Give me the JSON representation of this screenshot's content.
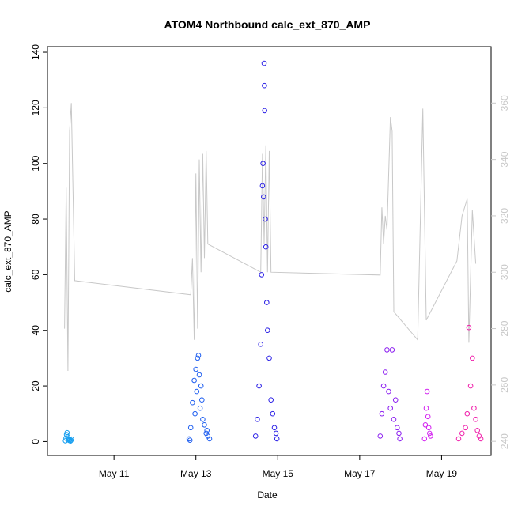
{
  "chart_data": {
    "type": "scatter",
    "title": "ATOM4 Northbound calc_ext_870_AMP",
    "xlabel": "Date",
    "ylabel": "calc_ext_870_AMP",
    "xlim": [
      "2023-05-09T09:00",
      "2023-05-20T05:00"
    ],
    "ylim": [
      -5,
      142
    ],
    "y2lim": [
      235,
      380
    ],
    "x_ticks": [
      {
        "date": "2023-05-11",
        "label": "May 11"
      },
      {
        "date": "2023-05-13",
        "label": "May 13"
      },
      {
        "date": "2023-05-15",
        "label": "May 15"
      },
      {
        "date": "2023-05-17",
        "label": "May 17"
      },
      {
        "date": "2023-05-19",
        "label": "May 19"
      }
    ],
    "y_ticks": [
      0,
      20,
      40,
      60,
      80,
      100,
      120,
      140
    ],
    "y2_ticks": [
      240,
      260,
      280,
      300,
      320,
      340,
      360
    ],
    "grid": false,
    "legend": "none",
    "colors": {
      "right_axis": "#c8c8c8",
      "secondary_line": "#c8c8c8",
      "axes": "#000000"
    },
    "series": [
      {
        "kind": "points",
        "color": "#1aa0f0",
        "points": [
          [
            "2023-05-09T19:30",
            0.3
          ],
          [
            "2023-05-09T19:50",
            1.2
          ],
          [
            "2023-05-09T20:10",
            2.5
          ],
          [
            "2023-05-09T20:30",
            3.2
          ],
          [
            "2023-05-09T20:50",
            1.8
          ],
          [
            "2023-05-09T21:10",
            0.6
          ],
          [
            "2023-05-09T21:30",
            1.0
          ],
          [
            "2023-05-09T21:50",
            0.4
          ],
          [
            "2023-05-09T22:10",
            0.8
          ],
          [
            "2023-05-09T22:30",
            0.2
          ],
          [
            "2023-05-09T22:50",
            0.5
          ],
          [
            "2023-05-09T23:10",
            0.9
          ]
        ]
      },
      {
        "kind": "points",
        "color": "#1e5ef0",
        "points": [
          [
            "2023-05-12T20:00",
            1.0
          ],
          [
            "2023-05-12T21:00",
            5.0
          ],
          [
            "2023-05-12T22:00",
            14.0
          ],
          [
            "2023-05-12T23:00",
            22.0
          ],
          [
            "2023-05-13T00:00",
            26.0
          ],
          [
            "2023-05-13T00:30",
            18.0
          ],
          [
            "2023-05-13T01:00",
            30.0
          ],
          [
            "2023-05-13T01:30",
            31.0
          ],
          [
            "2023-05-13T02:00",
            24.0
          ],
          [
            "2023-05-13T02:30",
            12.0
          ],
          [
            "2023-05-13T03:00",
            20.0
          ],
          [
            "2023-05-13T04:00",
            8.0
          ],
          [
            "2023-05-13T05:00",
            6.0
          ],
          [
            "2023-05-13T06:00",
            3.0
          ],
          [
            "2023-05-13T07:00",
            2.0
          ],
          [
            "2023-05-13T08:00",
            1.0
          ],
          [
            "2023-05-12T20:30",
            0.5
          ],
          [
            "2023-05-12T23:30",
            10.0
          ],
          [
            "2023-05-13T03:30",
            15.0
          ],
          [
            "2023-05-13T06:30",
            4.0
          ]
        ]
      },
      {
        "kind": "points",
        "color": "#2a1fe6",
        "points": [
          [
            "2023-05-14T11:00",
            2.0
          ],
          [
            "2023-05-14T12:00",
            8.0
          ],
          [
            "2023-05-14T13:00",
            20.0
          ],
          [
            "2023-05-14T14:00",
            35.0
          ],
          [
            "2023-05-14T14:30",
            60.0
          ],
          [
            "2023-05-14T15:00",
            92.0
          ],
          [
            "2023-05-14T15:20",
            100.0
          ],
          [
            "2023-05-14T15:40",
            88.0
          ],
          [
            "2023-05-14T16:00",
            136.0
          ],
          [
            "2023-05-14T16:10",
            128.0
          ],
          [
            "2023-05-14T16:20",
            119.0
          ],
          [
            "2023-05-14T16:40",
            80.0
          ],
          [
            "2023-05-14T17:00",
            70.0
          ],
          [
            "2023-05-14T17:30",
            50.0
          ],
          [
            "2023-05-14T18:00",
            40.0
          ],
          [
            "2023-05-14T19:00",
            30.0
          ],
          [
            "2023-05-14T20:00",
            15.0
          ],
          [
            "2023-05-14T21:00",
            10.0
          ],
          [
            "2023-05-14T22:00",
            5.0
          ],
          [
            "2023-05-14T23:00",
            3.0
          ],
          [
            "2023-05-14T23:30",
            1.0
          ]
        ]
      },
      {
        "kind": "points",
        "color": "#8b1ef0",
        "points": [
          [
            "2023-05-17T12:00",
            2.0
          ],
          [
            "2023-05-17T13:00",
            10.0
          ],
          [
            "2023-05-17T14:00",
            20.0
          ],
          [
            "2023-05-17T15:00",
            25.0
          ],
          [
            "2023-05-17T16:00",
            33.0
          ],
          [
            "2023-05-17T17:00",
            18.0
          ],
          [
            "2023-05-17T18:00",
            12.0
          ],
          [
            "2023-05-17T19:00",
            33.0
          ],
          [
            "2023-05-17T20:00",
            8.0
          ],
          [
            "2023-05-17T21:00",
            15.0
          ],
          [
            "2023-05-17T22:00",
            5.0
          ],
          [
            "2023-05-17T23:00",
            3.0
          ],
          [
            "2023-05-17T23:30",
            1.0
          ]
        ]
      },
      {
        "kind": "points",
        "color": "#d21ef0",
        "points": [
          [
            "2023-05-18T14:00",
            1.0
          ],
          [
            "2023-05-18T14:30",
            6.0
          ],
          [
            "2023-05-18T15:00",
            12.0
          ],
          [
            "2023-05-18T15:30",
            18.0
          ],
          [
            "2023-05-18T16:00",
            9.0
          ],
          [
            "2023-05-18T16:30",
            5.0
          ],
          [
            "2023-05-18T17:00",
            3.0
          ],
          [
            "2023-05-18T17:30",
            2.0
          ]
        ]
      },
      {
        "kind": "points",
        "color": "#f01eaa",
        "points": [
          [
            "2023-05-19T10:00",
            1.0
          ],
          [
            "2023-05-19T12:00",
            3.0
          ],
          [
            "2023-05-19T14:00",
            5.0
          ],
          [
            "2023-05-19T15:00",
            10.0
          ],
          [
            "2023-05-19T16:00",
            41.0
          ],
          [
            "2023-05-19T17:00",
            20.0
          ],
          [
            "2023-05-19T18:00",
            30.0
          ],
          [
            "2023-05-19T19:00",
            12.0
          ],
          [
            "2023-05-19T20:00",
            8.0
          ],
          [
            "2023-05-19T21:00",
            4.0
          ],
          [
            "2023-05-19T22:00",
            2.0
          ],
          [
            "2023-05-19T23:00",
            1.0
          ]
        ]
      },
      {
        "kind": "line",
        "axis": "right",
        "color": "#c8c8c8",
        "points": [
          [
            "2023-05-09T19:00",
            280.0
          ],
          [
            "2023-05-09T20:00",
            330.0
          ],
          [
            "2023-05-09T21:00",
            265.0
          ],
          [
            "2023-05-09T22:00",
            350.0
          ],
          [
            "2023-05-09T23:00",
            360.0
          ],
          [
            "2023-05-10T01:00",
            297.0
          ],
          [
            "2023-05-12T21:00",
            292.0
          ],
          [
            "2023-05-12T22:00",
            305.0
          ],
          [
            "2023-05-12T23:00",
            276.0
          ],
          [
            "2023-05-13T00:00",
            335.0
          ],
          [
            "2023-05-13T01:00",
            280.0
          ],
          [
            "2023-05-13T02:00",
            340.0
          ],
          [
            "2023-05-13T03:00",
            300.0
          ],
          [
            "2023-05-13T04:00",
            342.0
          ],
          [
            "2023-05-13T05:00",
            305.0
          ],
          [
            "2023-05-13T06:00",
            343.0
          ],
          [
            "2023-05-13T07:00",
            310.0
          ],
          [
            "2023-05-14T14:00",
            300.0
          ],
          [
            "2023-05-14T15:00",
            342.0
          ],
          [
            "2023-05-14T16:00",
            310.0
          ],
          [
            "2023-05-14T17:00",
            345.0
          ],
          [
            "2023-05-14T18:00",
            300.0
          ],
          [
            "2023-05-14T19:00",
            343.0
          ],
          [
            "2023-05-14T20:00",
            300.0
          ],
          [
            "2023-05-17T12:00",
            299.0
          ],
          [
            "2023-05-17T13:00",
            323.0
          ],
          [
            "2023-05-17T14:00",
            310.0
          ],
          [
            "2023-05-17T15:00",
            320.0
          ],
          [
            "2023-05-17T16:00",
            315.0
          ],
          [
            "2023-05-17T18:00",
            355.0
          ],
          [
            "2023-05-17T19:00",
            350.0
          ],
          [
            "2023-05-17T20:00",
            286.0
          ],
          [
            "2023-05-18T10:00",
            276.0
          ],
          [
            "2023-05-18T13:00",
            358.0
          ],
          [
            "2023-05-18T15:00",
            283.0
          ],
          [
            "2023-05-19T09:00",
            304.0
          ],
          [
            "2023-05-19T12:00",
            320.0
          ],
          [
            "2023-05-19T15:00",
            326.0
          ],
          [
            "2023-05-19T16:00",
            275.0
          ],
          [
            "2023-05-19T18:00",
            322.0
          ],
          [
            "2023-05-19T20:00",
            303.0
          ]
        ]
      }
    ]
  }
}
